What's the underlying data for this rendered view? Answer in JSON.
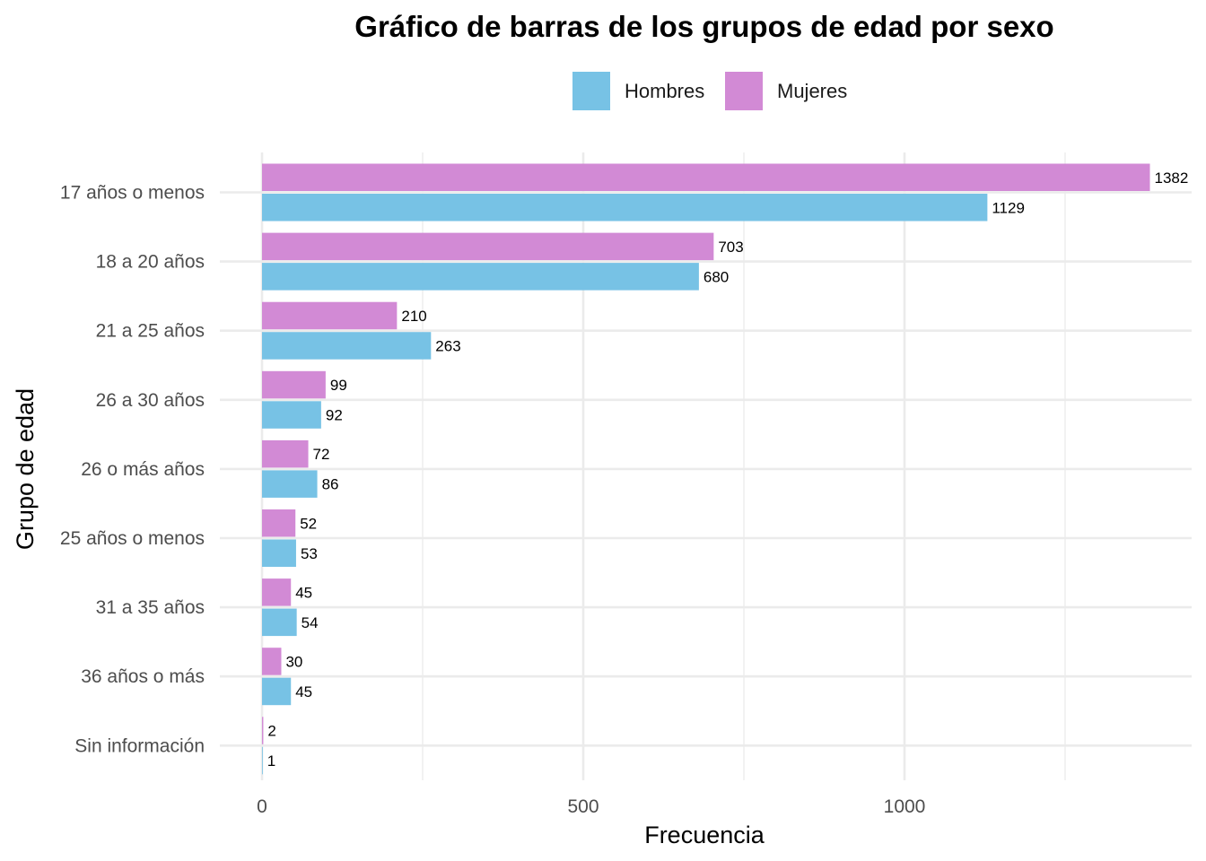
{
  "chart_data": {
    "type": "bar",
    "orientation": "horizontal",
    "title": "Gráfico de barras de los grupos de edad por sexo",
    "xlabel": "Frecuencia",
    "ylabel": "Grupo de edad",
    "categories": [
      "17 años o menos",
      "18 a 20 años",
      "21 a 25 años",
      "26 a 30 años",
      "26 o más años",
      "25 años o menos",
      "31 a 35 años",
      "36 años o más",
      "Sin información"
    ],
    "series": [
      {
        "name": "Hombres",
        "color": "#77C2E5",
        "values": [
          1129,
          680,
          263,
          92,
          86,
          53,
          54,
          45,
          1
        ]
      },
      {
        "name": "Mujeres",
        "color": "#D28AD5",
        "values": [
          1382,
          703,
          210,
          99,
          72,
          52,
          45,
          30,
          2
        ]
      }
    ],
    "xlim": [
      0,
      1382
    ],
    "x_ticks": [
      0,
      500,
      1000
    ],
    "x_tick_labels": [
      "0",
      "500",
      "1000"
    ],
    "grid": true,
    "legend_position": "top"
  }
}
